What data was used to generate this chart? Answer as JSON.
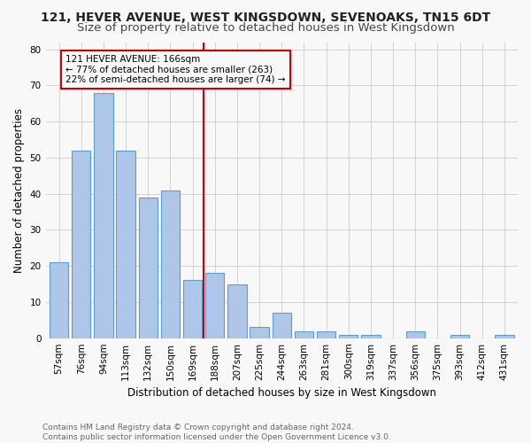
{
  "title1": "121, HEVER AVENUE, WEST KINGSDOWN, SEVENOAKS, TN15 6DT",
  "title2": "Size of property relative to detached houses in West Kingsdown",
  "xlabel": "Distribution of detached houses by size in West Kingsdown",
  "ylabel": "Number of detached properties",
  "footer1": "Contains HM Land Registry data © Crown copyright and database right 2024.",
  "footer2": "Contains public sector information licensed under the Open Government Licence v3.0.",
  "categories": [
    "57sqm",
    "76sqm",
    "94sqm",
    "113sqm",
    "132sqm",
    "150sqm",
    "169sqm",
    "188sqm",
    "207sqm",
    "225sqm",
    "244sqm",
    "263sqm",
    "281sqm",
    "300sqm",
    "319sqm",
    "337sqm",
    "356sqm",
    "375sqm",
    "393sqm",
    "412sqm",
    "431sqm"
  ],
  "values": [
    21,
    52,
    68,
    52,
    39,
    41,
    16,
    18,
    15,
    3,
    7,
    2,
    2,
    1,
    1,
    0,
    2,
    0,
    1,
    0,
    1
  ],
  "bar_color": "#aec6e8",
  "bar_edge_color": "#5a9fd4",
  "vline_x": 6.5,
  "annotation_title": "121 HEVER AVENUE: 166sqm",
  "annotation_line2": "← 77% of detached houses are smaller (263)",
  "annotation_line3": "22% of semi-detached houses are larger (74) →",
  "ylim": [
    0,
    82
  ],
  "yticks": [
    0,
    10,
    20,
    30,
    40,
    50,
    60,
    70,
    80
  ],
  "bg_color": "#f8f8f8",
  "grid_color": "#cccccc",
  "vline_color": "#cc0000",
  "annotation_box_color": "#cc0000",
  "title1_fontsize": 10,
  "title2_fontsize": 9.5,
  "xlabel_fontsize": 8.5,
  "ylabel_fontsize": 8.5,
  "tick_fontsize": 7.5,
  "footer_fontsize": 6.5
}
